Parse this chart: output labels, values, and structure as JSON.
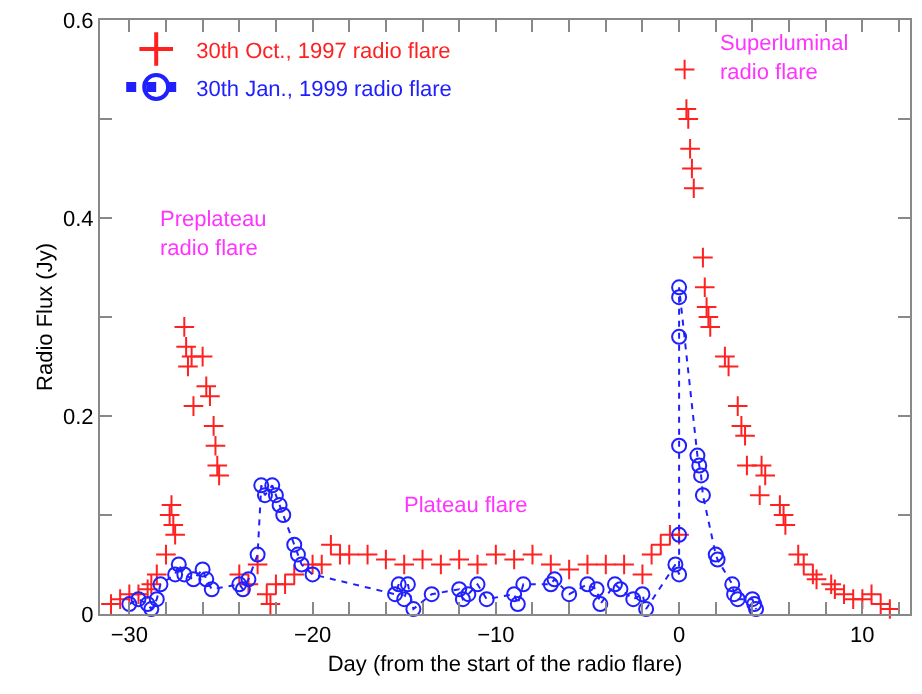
{
  "chart_data": {
    "type": "scatter",
    "xlabel": "Day (from the start of the radio flare)",
    "ylabel": "Radio Flux (Jy)",
    "xlim": [
      -31.6,
      12.6
    ],
    "ylim": [
      0,
      0.6
    ],
    "xticks": [
      {
        "value": -30,
        "label": "−30"
      },
      {
        "value": -28,
        "label": null
      },
      {
        "value": -26,
        "label": null
      },
      {
        "value": -24,
        "label": null
      },
      {
        "value": -22,
        "label": null
      },
      {
        "value": -20,
        "label": "−20"
      },
      {
        "value": -18,
        "label": null
      },
      {
        "value": -16,
        "label": null
      },
      {
        "value": -14,
        "label": null
      },
      {
        "value": -12,
        "label": null
      },
      {
        "value": -10,
        "label": "−10"
      },
      {
        "value": -8,
        "label": null
      },
      {
        "value": -6,
        "label": null
      },
      {
        "value": -4,
        "label": null
      },
      {
        "value": -2,
        "label": null
      },
      0,
      {
        "value": 2,
        "label": null
      },
      {
        "value": 4,
        "label": null
      },
      {
        "value": 6,
        "label": null
      },
      {
        "value": 8,
        "label": null
      },
      10,
      {
        "value": 12,
        "label": null
      }
    ],
    "yticks": [
      0,
      {
        "value": 0.1,
        "label": null
      },
      0.2,
      {
        "value": 0.3,
        "label": null
      },
      0.4,
      {
        "value": 0.5,
        "label": null
      },
      0.6
    ],
    "legend": "top left",
    "annotations": [
      "Preplateau\nradio flare",
      "Plateau flare",
      "Superluminal\nradio flare"
    ],
    "series": [
      {
        "name": "30th Oct., 1997 radio flare",
        "color": "#ff2020",
        "marker": "cross",
        "x": [
          -31,
          -30.5,
          -30,
          -29.5,
          -29,
          -28.8,
          -28.5,
          -28,
          -27.8,
          -27.7,
          -27.6,
          -27.5,
          -27,
          -26.9,
          -26.8,
          -26.6,
          -26.5,
          -26,
          -25.8,
          -25.6,
          -25.4,
          -25.3,
          -25.2,
          -25.1,
          -24,
          -23.5,
          -23,
          -22.5,
          -22.3,
          -22,
          -21.5,
          -21,
          -20,
          -19.5,
          -19,
          -18.5,
          -18,
          -17,
          -16,
          -15,
          -14,
          -13,
          -12,
          -11,
          -10,
          -9,
          -8,
          -7,
          -6,
          -5,
          -4,
          -3,
          -2,
          -1.5,
          -1,
          -0.5,
          0,
          0.3,
          0.4,
          0.5,
          0.6,
          0.7,
          0.8,
          1.3,
          1.4,
          1.5,
          1.6,
          1.7,
          2.5,
          2.7,
          3.2,
          3.4,
          3.6,
          3.7,
          4.4,
          4.5,
          4.7,
          5.5,
          5.7,
          5.8,
          6.5,
          6.8,
          7.3,
          7.5,
          8.3,
          8.5,
          9,
          9.5,
          10,
          10.5,
          11,
          11.5
        ],
        "values": [
          0.01,
          0.015,
          0.02,
          0.02,
          0.025,
          0.03,
          0.04,
          0.06,
          0.1,
          0.11,
          0.09,
          0.08,
          0.29,
          0.27,
          0.25,
          0.26,
          0.21,
          0.26,
          0.23,
          0.22,
          0.19,
          0.17,
          0.15,
          0.14,
          0.04,
          0.03,
          0.05,
          0.02,
          0.01,
          0.03,
          0.03,
          0.04,
          0.05,
          0.05,
          0.07,
          0.06,
          0.06,
          0.06,
          0.055,
          0.05,
          0.055,
          0.05,
          0.055,
          0.05,
          0.06,
          0.055,
          0.06,
          0.05,
          0.045,
          0.05,
          0.05,
          0.05,
          0.04,
          0.06,
          0.07,
          0.08,
          0.08,
          0.55,
          0.51,
          0.5,
          0.47,
          0.45,
          0.43,
          0.36,
          0.33,
          0.31,
          0.3,
          0.29,
          0.26,
          0.25,
          0.21,
          0.19,
          0.18,
          0.15,
          0.12,
          0.15,
          0.14,
          0.11,
          0.1,
          0.09,
          0.06,
          0.05,
          0.04,
          0.035,
          0.03,
          0.025,
          0.02,
          0.015,
          0.015,
          0.02,
          0.01,
          0.005
        ]
      },
      {
        "name": "30th Jan., 1999 radio flare",
        "color": "#2020ff",
        "type": "line",
        "marker": "circle",
        "line_style": "dotted",
        "x": [
          -30,
          -29.5,
          -29,
          -28.8,
          -28.5,
          -28.3,
          -27.5,
          -27.3,
          -27,
          -26.5,
          -26,
          -25.8,
          -25.5,
          -24,
          -23.8,
          -23.5,
          -23,
          -22.8,
          -22.6,
          -22.2,
          -22,
          -21.8,
          -21.6,
          -21,
          -20.8,
          -20.6,
          -20,
          -15.5,
          -15.3,
          -15,
          -14.8,
          -14.5,
          -13.5,
          -12,
          -11.8,
          -11.5,
          -11,
          -10.5,
          -9,
          -8.8,
          -8.5,
          -7,
          -6.8,
          -6,
          -5,
          -4.5,
          -4.3,
          -3.5,
          -3.2,
          -2.5,
          -2,
          -1.8,
          -0.2,
          0,
          0,
          0,
          0,
          0,
          0,
          1,
          1.1,
          1.2,
          1.3,
          2,
          2.1,
          2.9,
          3,
          3.2,
          4,
          4.1,
          4.2
        ],
        "values": [
          0.01,
          0.015,
          0.01,
          0.005,
          0.015,
          0.03,
          0.04,
          0.05,
          0.04,
          0.035,
          0.045,
          0.035,
          0.025,
          0.03,
          0.025,
          0.035,
          0.06,
          0.13,
          0.12,
          0.13,
          0.12,
          0.11,
          0.1,
          0.07,
          0.06,
          0.05,
          0.04,
          0.02,
          0.03,
          0.015,
          0.03,
          0.005,
          0.02,
          0.025,
          0.015,
          0.02,
          0.03,
          0.015,
          0.02,
          0.01,
          0.03,
          0.03,
          0.035,
          0.02,
          0.03,
          0.025,
          0.01,
          0.03,
          0.025,
          0.015,
          0.02,
          0.005,
          0.05,
          0.04,
          0.08,
          0.17,
          0.28,
          0.32,
          0.33,
          0.16,
          0.15,
          0.14,
          0.12,
          0.06,
          0.055,
          0.03,
          0.02,
          0.015,
          0.015,
          0.01,
          0.005
        ]
      }
    ]
  }
}
